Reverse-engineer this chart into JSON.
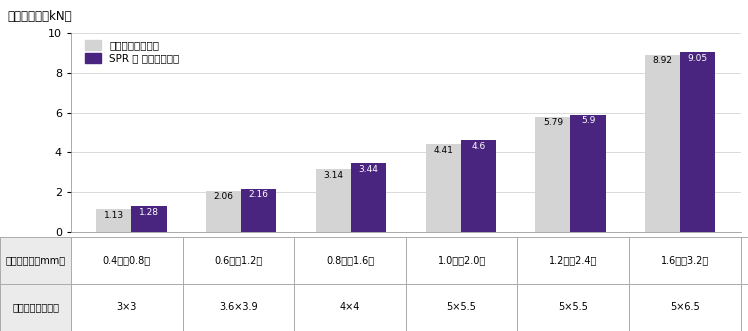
{
  "row1_labels": [
    "0.4（誈0.8）",
    "0.6（誈1.2）",
    "0.8（誈1.6）",
    "1.0（誈2.0）",
    "1.2（誈2.4）",
    "1.6（誈3.2）"
  ],
  "row2_labels": [
    "3×3",
    "3.6×3.9",
    "4×4",
    "5×5.5",
    "5×5.5",
    "5×6.5"
  ],
  "values_gray": [
    1.13,
    2.06,
    3.14,
    4.41,
    5.79,
    8.92
  ],
  "values_purple": [
    1.28,
    2.16,
    3.44,
    4.6,
    5.9,
    9.05
  ],
  "color_gray": "#d4d4d4",
  "color_purple": "#4a2580",
  "title": "せん断強度（kN）",
  "legend_gray": "抗抗スポット溦接",
  "legend_purple": "SPR｜打込リベット",
  "legend_gray_text": "抗抗スポット溦接",
  "ylim": [
    0,
    10
  ],
  "yticks": [
    0,
    2,
    4,
    6,
    8,
    10
  ],
  "row1_header": "ワーク板厚（mm）",
  "row2_header": "使用リベット寸法",
  "bar_width": 0.32,
  "legend_gray_label": "抗抗スポット溦接",
  "legend_purple_label": "SPR ｜ 打込リベット"
}
